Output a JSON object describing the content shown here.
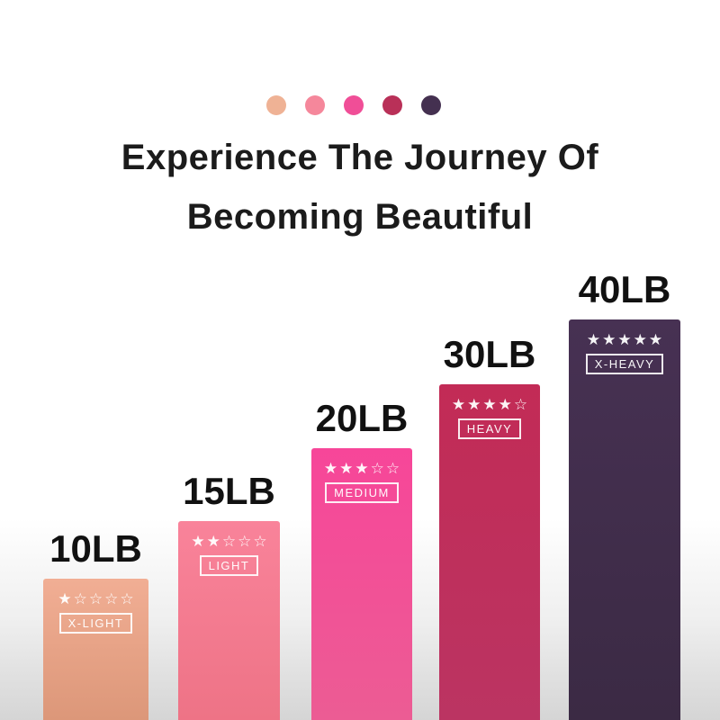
{
  "title": {
    "line1": "Experience The Journey Of",
    "line2": "Becoming Beautiful",
    "color": "#1b1b1b"
  },
  "palette": [
    {
      "name": "x-light",
      "color": "#efb295"
    },
    {
      "name": "light",
      "color": "#f5879b"
    },
    {
      "name": "medium",
      "color": "#f04e97"
    },
    {
      "name": "heavy",
      "color": "#b93058"
    },
    {
      "name": "x-heavy",
      "color": "#443050"
    }
  ],
  "bars": [
    {
      "weight": "10LB",
      "tier": "X-LIGHT",
      "stars": "★☆☆☆☆",
      "stars_filled": 1,
      "gradient": [
        "#f1ae94",
        "#dc9779"
      ]
    },
    {
      "weight": "15LB",
      "tier": "LIGHT",
      "stars": "★★☆☆☆",
      "stars_filled": 2,
      "gradient": [
        "#f9839a",
        "#ee7386"
      ]
    },
    {
      "weight": "20LB",
      "tier": "MEDIUM",
      "stars": "★★★☆☆",
      "stars_filled": 3,
      "gradient": [
        "#f74699",
        "#ec5c94"
      ]
    },
    {
      "weight": "30LB",
      "tier": "HEAVY",
      "stars": "★★★★☆",
      "stars_filled": 4,
      "gradient": [
        "#c22b56",
        "#bb3462"
      ]
    },
    {
      "weight": "40LB",
      "tier": "X-HEAVY",
      "stars": "★★★★★",
      "stars_filled": 5,
      "gradient": [
        "#473153",
        "#3b2a44"
      ]
    }
  ],
  "chart_data": {
    "type": "bar",
    "title": "Experience The Journey Of Becoming Beautiful",
    "categories": [
      "10LB",
      "15LB",
      "20LB",
      "30LB",
      "40LB"
    ],
    "values": [
      10,
      15,
      20,
      30,
      40
    ],
    "unit": "LB",
    "star_ratings": [
      1,
      2,
      3,
      4,
      5
    ],
    "star_rating_max": 5,
    "tier_labels": [
      "X-LIGHT",
      "LIGHT",
      "MEDIUM",
      "HEAVY",
      "X-HEAVY"
    ],
    "bar_colors": [
      "#f1ae94",
      "#f9839a",
      "#f74699",
      "#c22b56",
      "#473153"
    ],
    "xlabel": "",
    "ylabel": "",
    "grid": false,
    "legend_position": "none",
    "value_label_position": "above-bar"
  },
  "background": {
    "top": "#ffffff",
    "bottom": "#d5d5d5"
  }
}
